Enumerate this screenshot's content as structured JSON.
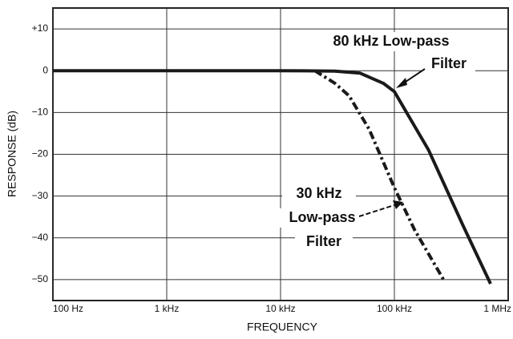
{
  "chart_data": {
    "type": "line",
    "xlabel": "FREQUENCY",
    "ylabel": "RESPONSE (dB)",
    "xscale": "log",
    "xlim": [
      100,
      1000000
    ],
    "ylim": [
      -55,
      15
    ],
    "xticks": [
      {
        "value": 100,
        "label": "100 Hz"
      },
      {
        "value": 1000,
        "label": "1 kHz"
      },
      {
        "value": 10000,
        "label": "10 kHz"
      },
      {
        "value": 100000,
        "label": "100 kHz"
      },
      {
        "value": 1000000,
        "label": "1 MHz"
      }
    ],
    "yticks": [
      {
        "value": 10,
        "label": "+10"
      },
      0,
      {
        "value": -10,
        "label": "−10"
      },
      {
        "value": -20,
        "label": "−20"
      },
      {
        "value": -30,
        "label": "−30"
      },
      {
        "value": -40,
        "label": "−40"
      },
      {
        "value": -50,
        "label": "−50"
      }
    ],
    "grid": true,
    "series": [
      {
        "name": "80 kHz Low-pass Filter",
        "color": "#1a1a1a",
        "style": "solid",
        "x": [
          100,
          1000,
          10000,
          30000,
          50000,
          80000,
          100000,
          200000,
          400000,
          700000
        ],
        "values": [
          0,
          0,
          0,
          -0.1,
          -0.6,
          -3,
          -5,
          -19,
          -37,
          -51
        ]
      },
      {
        "name": "30 kHz Low-pass Filter",
        "color": "#1a1a1a",
        "style": "dashdot",
        "x": [
          20000,
          30000,
          40000,
          60000,
          100000,
          150000,
          270000
        ],
        "values": [
          0,
          -3,
          -6,
          -14,
          -28,
          -38,
          -50
        ]
      }
    ],
    "annotations": [
      "80 kHz Low-pass",
      "Filter",
      "30 kHz",
      "Low-pass",
      "Filter"
    ]
  }
}
